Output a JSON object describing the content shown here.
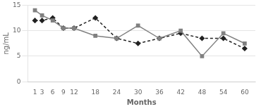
{
  "chart_data": {
    "type": "line",
    "x": [
      1,
      3,
      6,
      9,
      12,
      18,
      24,
      30,
      36,
      42,
      48,
      54,
      60
    ],
    "series": [
      {
        "color": "#808080",
        "marker": "square",
        "line_style": "solid",
        "values": [
          14,
          13,
          12,
          10.5,
          10.5,
          9,
          8.5,
          11,
          8.5,
          10,
          5,
          9.5,
          7.5
        ]
      },
      {
        "color": "#222222",
        "marker": "diamond",
        "line_style": "dashed",
        "values": [
          12,
          12,
          12.5,
          10.5,
          10.5,
          12.5,
          8.5,
          7.5,
          8.5,
          9.5,
          8.5,
          8.5,
          6.5
        ]
      }
    ],
    "xlabel": "Months",
    "ylabel": "ng/mL",
    "xlim": [
      -1,
      63
    ],
    "xticks": [
      1,
      3,
      6,
      9,
      12,
      18,
      24,
      30,
      36,
      42,
      48,
      54,
      60
    ],
    "ylim": [
      0,
      15
    ],
    "yticks": [
      0,
      5,
      10,
      15
    ],
    "grid": true
  }
}
